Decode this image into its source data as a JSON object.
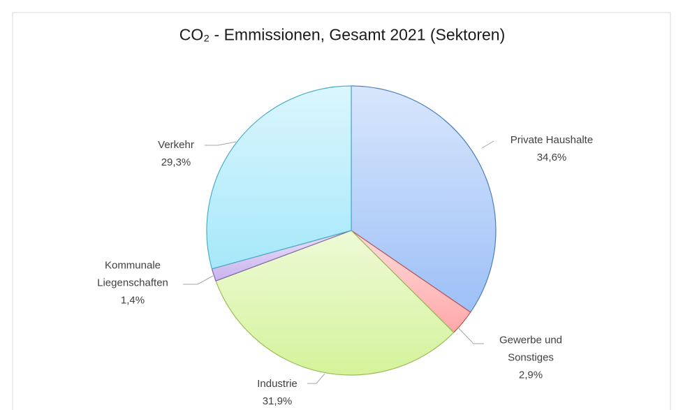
{
  "chart_data": {
    "type": "pie",
    "title": "CO₂ -  Emmissionen, Gesamt 2021 (Sektoren)",
    "categories": [
      "Private Haushalte",
      "Gewerbe und Sonstiges",
      "Industrie",
      "Kommunale Liegenschaften",
      "Verkehr"
    ],
    "values": [
      34.6,
      2.9,
      31.9,
      1.4,
      29.3
    ],
    "value_labels": [
      "34,6%",
      "2,9%",
      "31,9%",
      "1,4%",
      "29,3%"
    ],
    "colors": [
      "#9dc0f7",
      "#ffa8a8",
      "#d4f39a",
      "#c9b3ee",
      "#a6e8fa"
    ],
    "edge_colors": [
      "#4a7ebb",
      "#c0504d",
      "#9bbb59",
      "#8064a2",
      "#4bacc6"
    ]
  }
}
